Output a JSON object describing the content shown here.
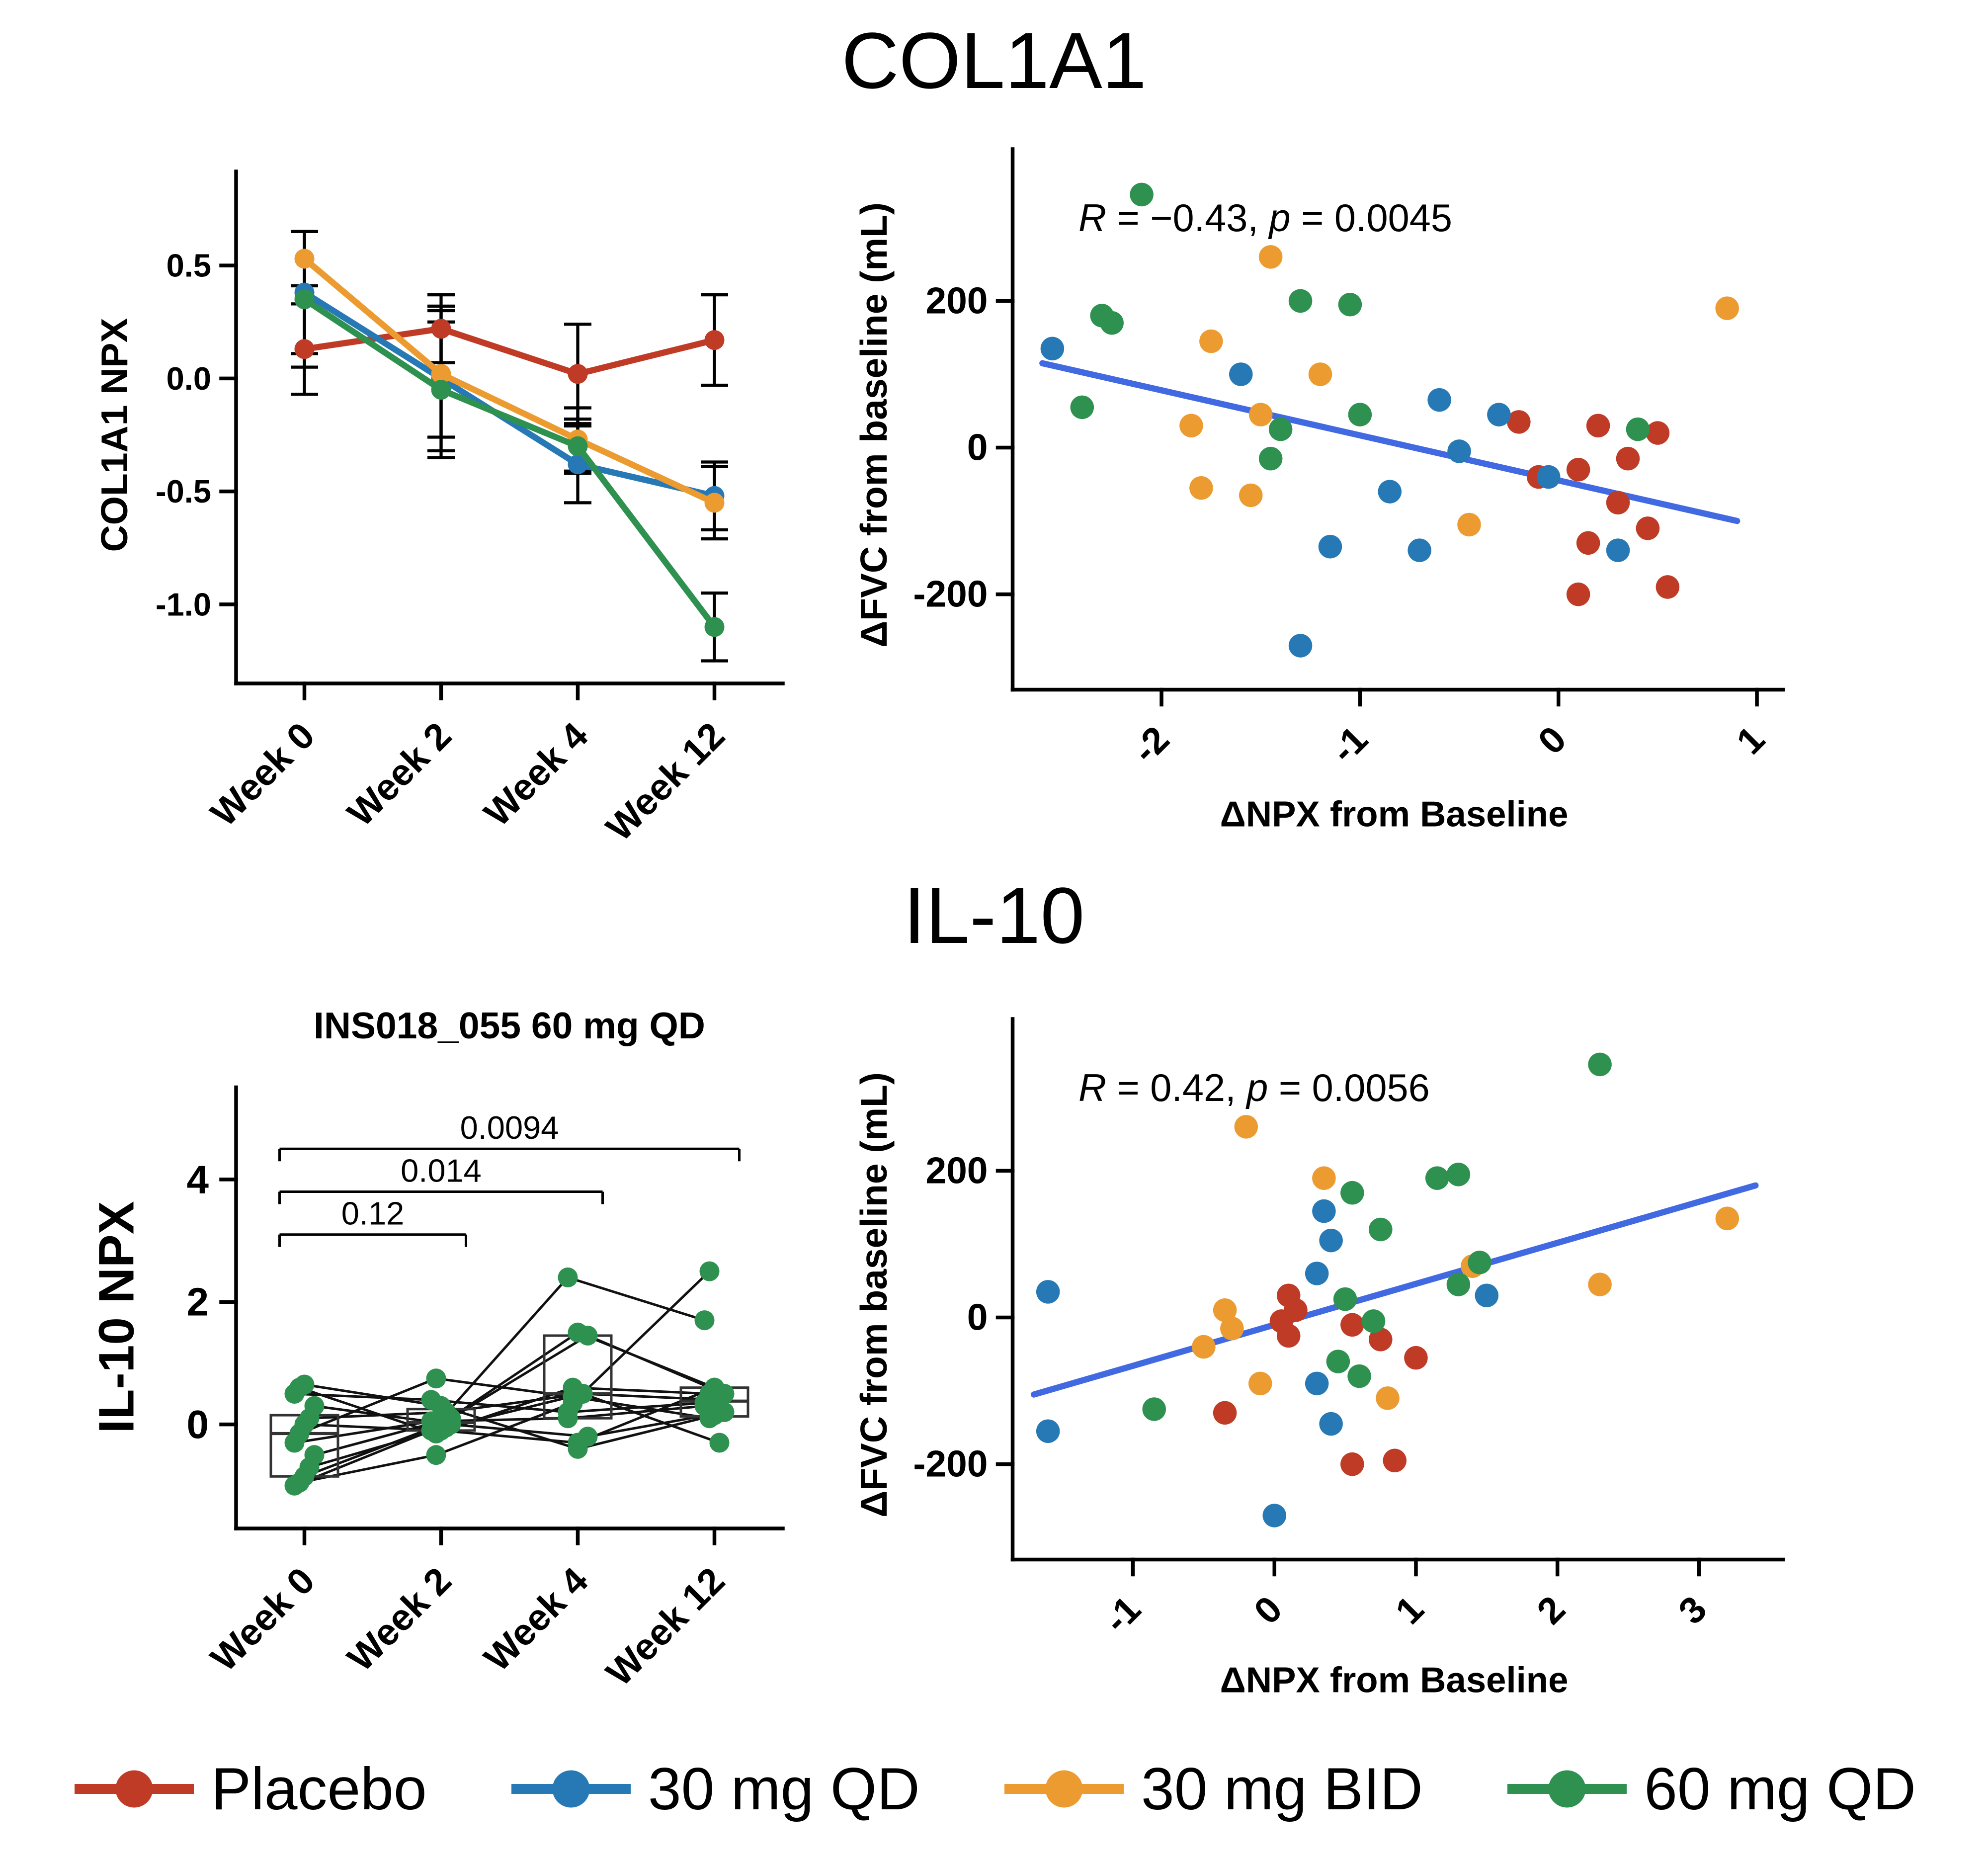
{
  "titles": {
    "col1a1": "COL1A1",
    "il10": "IL-10"
  },
  "legend": {
    "items": [
      {
        "key": "placebo",
        "label": "Placebo",
        "color": "#bf3b26"
      },
      {
        "key": "30mg-qd",
        "label": "30 mg QD",
        "color": "#2779b5"
      },
      {
        "key": "30mg-bid",
        "label": "30 mg BID",
        "color": "#eb9b30"
      },
      {
        "key": "60mg-qd",
        "label": "60 mg QD",
        "color": "#2e9150"
      }
    ]
  },
  "chart_data": [
    {
      "type": "line",
      "description": "COL1A1 NPX mean with error bars over visit weeks by treatment group",
      "categories": [
        "Week 0",
        "Week 2",
        "Week 4",
        "Week 12"
      ],
      "ylabel": "COL1A1 NPX",
      "ylim": [
        -1.35,
        0.85
      ],
      "yticks": [
        0.5,
        0.0,
        -0.5,
        -1.0
      ],
      "ytick_labels": [
        "0.5",
        "0.0",
        "-0.5",
        "-1.0"
      ],
      "series": [
        {
          "name": "Placebo",
          "color": "#bf3b26",
          "values": [
            0.13,
            0.22,
            0.02,
            0.17
          ],
          "errors": [
            0.2,
            0.15,
            0.22,
            0.2
          ]
        },
        {
          "name": "30 mg QD",
          "color": "#2779b5",
          "values": [
            0.38,
            0.0,
            -0.38,
            -0.52
          ],
          "errors": [
            0.27,
            0.32,
            0.17,
            0.15
          ]
        },
        {
          "name": "30 mg BID",
          "color": "#eb9b30",
          "values": [
            0.53,
            0.02,
            -0.27,
            -0.55
          ],
          "errors": [
            0.12,
            0.28,
            0.14,
            0.16
          ]
        },
        {
          "name": "60 mg QD",
          "color": "#2e9150",
          "values": [
            0.35,
            -0.05,
            -0.3,
            -1.1
          ],
          "errors": [
            0.3,
            0.3,
            0.12,
            0.15
          ]
        }
      ]
    },
    {
      "type": "scatter",
      "annotation": {
        "r_symbol": "R",
        "r_text": " = −0.43, ",
        "p_symbol": "p",
        "p_text": " = 0.0045"
      },
      "xlabel": "ΔNPX from Baseline",
      "ylabel": "ΔFVC from baseline (mL)",
      "xlim": [
        -2.75,
        1.1
      ],
      "ylim": [
        -330,
        390
      ],
      "xticks": [
        -2,
        -1,
        0,
        1
      ],
      "xtick_labels": [
        "-2",
        "-1",
        "0",
        "1"
      ],
      "yticks": [
        200,
        0,
        -200
      ],
      "ytick_labels": [
        "200",
        "0",
        "-200"
      ],
      "regression": {
        "color": "#4169e1",
        "x1": -2.6,
        "y1": 115,
        "x2": 0.9,
        "y2": -100
      },
      "groups": [
        {
          "name": "Placebo",
          "color": "#bf3b26",
          "points": [
            [
              -0.2,
              35
            ],
            [
              -0.1,
              -40
            ],
            [
              0.1,
              -30
            ],
            [
              0.2,
              30
            ],
            [
              0.3,
              -75
            ],
            [
              0.15,
              -130
            ],
            [
              0.1,
              -200
            ],
            [
              0.5,
              20
            ],
            [
              0.55,
              -190
            ],
            [
              0.45,
              -110
            ],
            [
              0.35,
              -15
            ]
          ]
        },
        {
          "name": "30 mg QD",
          "color": "#2779b5",
          "points": [
            [
              -2.55,
              135
            ],
            [
              -1.6,
              100
            ],
            [
              -1.3,
              -270
            ],
            [
              -1.15,
              -135
            ],
            [
              -0.85,
              -60
            ],
            [
              -0.7,
              -140
            ],
            [
              -0.6,
              65
            ],
            [
              -0.5,
              -5
            ],
            [
              -0.3,
              45
            ],
            [
              0.3,
              -140
            ],
            [
              -0.05,
              -40
            ]
          ]
        },
        {
          "name": "30 mg BID",
          "color": "#eb9b30",
          "points": [
            [
              -1.45,
              260
            ],
            [
              -1.75,
              145
            ],
            [
              -1.85,
              30
            ],
            [
              -1.5,
              45
            ],
            [
              -1.8,
              -55
            ],
            [
              -1.55,
              -65
            ],
            [
              -1.2,
              100
            ],
            [
              -0.45,
              -105
            ],
            [
              0.85,
              190
            ]
          ]
        },
        {
          "name": "60 mg QD",
          "color": "#2e9150",
          "points": [
            [
              -2.1,
              345
            ],
            [
              -2.3,
              180
            ],
            [
              -2.25,
              170
            ],
            [
              -2.4,
              55
            ],
            [
              -1.3,
              200
            ],
            [
              -1.05,
              195
            ],
            [
              -1.4,
              25
            ],
            [
              -1.0,
              45
            ],
            [
              -1.45,
              -15
            ],
            [
              0.4,
              25
            ]
          ]
        }
      ]
    },
    {
      "type": "spaghetti-box",
      "title": "INS018_055 60 mg QD",
      "ylabel": "IL-10 NPX",
      "categories": [
        "Week 0",
        "Week 2",
        "Week 4",
        "Week 12"
      ],
      "ylim": [
        -1.7,
        5.2
      ],
      "yticks": [
        4,
        2,
        0
      ],
      "ytick_labels": [
        "4",
        "2",
        "0"
      ],
      "point_color": "#2e9150",
      "subjects": [
        [
          -1.0,
          -0.1,
          2.4,
          1.7
        ],
        [
          -0.95,
          -0.5,
          0.35,
          2.5
        ],
        [
          -0.85,
          0.0,
          1.5,
          0.6
        ],
        [
          -0.7,
          -0.05,
          0.5,
          0.4
        ],
        [
          -0.5,
          0.1,
          1.45,
          0.5
        ],
        [
          -0.3,
          0.05,
          0.1,
          0.3
        ],
        [
          -0.15,
          0.75,
          0.45,
          0.1
        ],
        [
          0.0,
          -0.1,
          -0.3,
          0.6
        ],
        [
          0.1,
          0.2,
          0.5,
          -0.3
        ],
        [
          0.3,
          0.0,
          -0.2,
          0.2
        ],
        [
          0.5,
          0.4,
          0.2,
          0.35
        ],
        [
          0.6,
          -0.15,
          0.6,
          0.5
        ],
        [
          0.65,
          0.3,
          -0.4,
          0.15
        ]
      ],
      "boxes": [
        {
          "q1": -0.85,
          "median": -0.15,
          "q3": 0.15
        },
        {
          "q1": -0.1,
          "median": 0.03,
          "q3": 0.25
        },
        {
          "q1": 0.1,
          "median": 0.5,
          "q3": 1.45
        },
        {
          "q1": 0.13,
          "median": 0.38,
          "q3": 0.6
        }
      ],
      "brackets": [
        {
          "from": 0,
          "to": 3,
          "label": "0.0094",
          "y": 4.5
        },
        {
          "from": 0,
          "to": 2,
          "label": "0.014",
          "y": 3.8
        },
        {
          "from": 0,
          "to": 1,
          "label": "0.12",
          "y": 3.1
        }
      ]
    },
    {
      "type": "scatter",
      "annotation": {
        "r_symbol": "R",
        "r_text": " = 0.42, ",
        "p_symbol": "p",
        "p_text": " = 0.0056"
      },
      "xlabel": "ΔNPX from Baseline",
      "ylabel": "ΔFVC from baseline (mL)",
      "xlim": [
        -1.85,
        3.55
      ],
      "ylim": [
        -330,
        390
      ],
      "xticks": [
        -1,
        0,
        1,
        2,
        3
      ],
      "xtick_labels": [
        "-1",
        "0",
        "1",
        "2",
        "3"
      ],
      "yticks": [
        200,
        0,
        -200
      ],
      "ytick_labels": [
        "200",
        "0",
        "-200"
      ],
      "regression": {
        "color": "#4169e1",
        "x1": -1.7,
        "y1": -105,
        "x2": 3.4,
        "y2": 180
      },
      "groups": [
        {
          "name": "Placebo",
          "color": "#bf3b26",
          "points": [
            [
              0.1,
              30
            ],
            [
              0.15,
              10
            ],
            [
              0.05,
              -5
            ],
            [
              0.1,
              -25
            ],
            [
              -0.35,
              -130
            ],
            [
              0.55,
              -10
            ],
            [
              0.75,
              -30
            ],
            [
              1.0,
              -55
            ],
            [
              0.55,
              -200
            ],
            [
              0.85,
              -195
            ]
          ]
        },
        {
          "name": "30 mg QD",
          "color": "#2779b5",
          "points": [
            [
              -1.6,
              35
            ],
            [
              -1.6,
              -155
            ],
            [
              0.0,
              -270
            ],
            [
              0.35,
              145
            ],
            [
              0.4,
              105
            ],
            [
              0.3,
              60
            ],
            [
              0.3,
              -90
            ],
            [
              0.4,
              -145
            ],
            [
              1.5,
              30
            ]
          ]
        },
        {
          "name": "30 mg BID",
          "color": "#eb9b30",
          "points": [
            [
              -0.2,
              260
            ],
            [
              0.35,
              190
            ],
            [
              -0.35,
              10
            ],
            [
              -0.3,
              -15
            ],
            [
              -0.5,
              -40
            ],
            [
              -0.1,
              -90
            ],
            [
              1.4,
              70
            ],
            [
              3.2,
              135
            ],
            [
              2.3,
              45
            ],
            [
              0.8,
              -110
            ]
          ]
        },
        {
          "name": "60 mg QD",
          "color": "#2e9150",
          "points": [
            [
              2.3,
              345
            ],
            [
              1.15,
              190
            ],
            [
              1.3,
              195
            ],
            [
              0.55,
              170
            ],
            [
              0.75,
              120
            ],
            [
              1.45,
              75
            ],
            [
              -0.85,
              -125
            ],
            [
              0.45,
              -60
            ],
            [
              0.6,
              -80
            ],
            [
              0.7,
              -5
            ],
            [
              0.5,
              25
            ],
            [
              1.3,
              45
            ]
          ]
        }
      ]
    }
  ]
}
